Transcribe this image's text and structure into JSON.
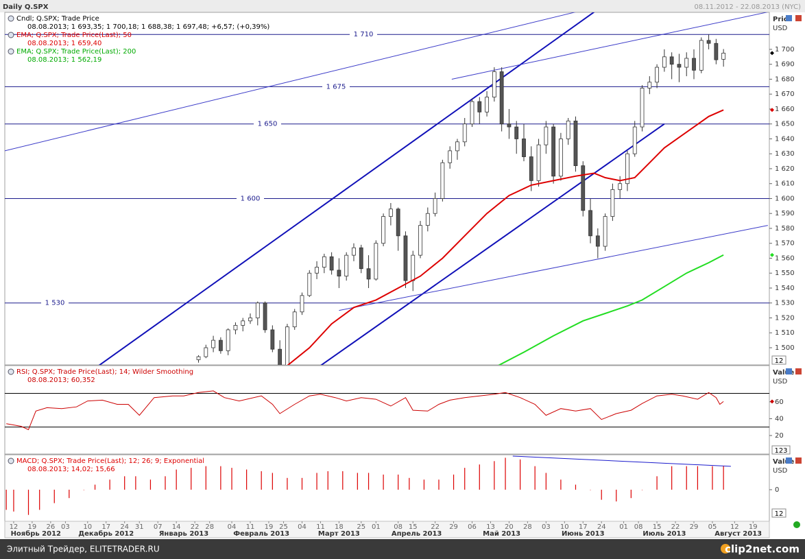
{
  "ui": {
    "title": "Daily Q.SPX",
    "range": "08.11.2012 - 22.08.2013 (NYC)",
    "price_box": "12",
    "rsi_box": "123",
    "macd_box": "12",
    "footer": "Элитный Трейдер, ELITETRADER.RU",
    "watermark": "clip2net.com"
  },
  "chart_data": [
    {
      "type": "candlestick",
      "y_label": "Price",
      "y_unit": "USD",
      "xlim": [
        -2.4,
        204.4
      ],
      "ylim": [
        1488.5,
        1724.8
      ],
      "yticks": [
        {
          "value": 1500,
          "label": "1 500"
        },
        {
          "value": 1510,
          "label": "1 510"
        },
        {
          "value": 1520,
          "label": "1 520"
        },
        {
          "value": 1530,
          "label": "1 530"
        },
        {
          "value": 1540,
          "label": "1 540"
        },
        {
          "value": 1550,
          "label": "1 550"
        },
        {
          "value": 1560,
          "label": "1 560"
        },
        {
          "value": 1570,
          "label": "1 570"
        },
        {
          "value": 1580,
          "label": "1 580"
        },
        {
          "value": 1590,
          "label": "1 590"
        },
        {
          "value": 1600,
          "label": "1 600"
        },
        {
          "value": 1610,
          "label": "1 610"
        },
        {
          "value": 1620,
          "label": "1 620"
        },
        {
          "value": 1630,
          "label": "1 630"
        },
        {
          "value": 1640,
          "label": "1 640"
        },
        {
          "value": 1650,
          "label": "1 650"
        },
        {
          "value": 1660,
          "label": "1 660"
        },
        {
          "value": 1670,
          "label": "1 670"
        },
        {
          "value": 1680,
          "label": "1 680"
        },
        {
          "value": 1690,
          "label": "1 690"
        },
        {
          "value": 1700,
          "label": "1 700"
        }
      ],
      "level_color": "#1a1a8c",
      "levels": [
        {
          "value": 1710,
          "label": "1 710"
        },
        {
          "value": 1675,
          "label": "1 675"
        },
        {
          "value": 1650,
          "label": "1 650"
        },
        {
          "value": 1600,
          "label": "1 600"
        },
        {
          "value": 1530,
          "label": "1 530"
        }
      ],
      "trend_lines": [
        {
          "x": [
            23,
            157
          ],
          "values": [
            1488,
            1725
          ],
          "color": "#1010b8",
          "bold": true
        },
        {
          "x": [
            83,
            176
          ],
          "values": [
            1488,
            1650
          ],
          "color": "#1010b8",
          "bold": true
        },
        {
          "x": [
            -2.4,
            152
          ],
          "values": [
            1632,
            1725
          ],
          "color": "#3a3ac8"
        },
        {
          "x": [
            118.5,
            204
          ],
          "values": [
            1680,
            1725
          ],
          "color": "#3a3ac8"
        },
        {
          "x": [
            88,
            204
          ],
          "values": [
            1525,
            1582
          ],
          "color": "#3a3ac8"
        }
      ],
      "candles": {
        "name": "Cndl; Q.SPX; Trade Price",
        "last_label": "08.08.2013; 1 693,35; 1 700,18; 1 688,38; 1 697,48; +6,57; (+0,39%)",
        "up_color": "#ffffff",
        "down_color": "#555555",
        "color": "#333333",
        "x": [
          48,
          50,
          52,
          54,
          56,
          58,
          60,
          62,
          64,
          66,
          68,
          70,
          72,
          74,
          76,
          78,
          80,
          82,
          84,
          86,
          88,
          90,
          92,
          94,
          96,
          98,
          100,
          102,
          104,
          106,
          108,
          110,
          112,
          114,
          116,
          118,
          120,
          122,
          124,
          126,
          128,
          130,
          132,
          134,
          136,
          138,
          140,
          142,
          144,
          146,
          148,
          150,
          152,
          154,
          156,
          158,
          160,
          162,
          164,
          166,
          168,
          170,
          172,
          174,
          176,
          178,
          180,
          182,
          184,
          186,
          188,
          190,
          192
        ],
        "open": [
          1485,
          1492,
          1494,
          1500,
          1505,
          1498,
          1512,
          1515,
          1518,
          1520,
          1530,
          1512,
          1499,
          1488,
          1514,
          1524,
          1535,
          1550,
          1554,
          1561,
          1552,
          1548,
          1562,
          1567,
          1553,
          1546,
          1570,
          1588,
          1593,
          1575,
          1545,
          1562,
          1582,
          1590,
          1600,
          1624,
          1632,
          1638,
          1650,
          1665,
          1658,
          1668,
          1685,
          1650,
          1648,
          1640,
          1628,
          1612,
          1636,
          1648,
          1615,
          1640,
          1652,
          1622,
          1592,
          1575,
          1568,
          1588,
          1606,
          1610,
          1630,
          1648,
          1674,
          1678,
          1688,
          1695,
          1690,
          1688,
          1694,
          1686,
          1706,
          1704,
          1693.35
        ],
        "high": [
          1488,
          1495,
          1502,
          1508,
          1507,
          1513,
          1517,
          1520,
          1523,
          1531,
          1531,
          1515,
          1505,
          1516,
          1526,
          1537,
          1552,
          1558,
          1563,
          1564,
          1560,
          1564,
          1570,
          1569,
          1562,
          1572,
          1590,
          1597,
          1594,
          1578,
          1565,
          1585,
          1594,
          1604,
          1626,
          1635,
          1640,
          1654,
          1667,
          1668,
          1672,
          1688,
          1688,
          1660,
          1652,
          1650,
          1635,
          1640,
          1652,
          1650,
          1644,
          1654,
          1655,
          1625,
          1600,
          1580,
          1590,
          1610,
          1615,
          1632,
          1652,
          1676,
          1682,
          1690,
          1700,
          1698,
          1697,
          1698,
          1700,
          1708,
          1710,
          1707,
          1700.18
        ],
        "low": [
          1482,
          1490,
          1493,
          1497,
          1496,
          1495,
          1509,
          1511,
          1516,
          1515,
          1510,
          1497,
          1485,
          1486,
          1512,
          1522,
          1534,
          1546,
          1550,
          1549,
          1540,
          1545,
          1558,
          1550,
          1540,
          1545,
          1568,
          1582,
          1565,
          1540,
          1538,
          1560,
          1578,
          1588,
          1598,
          1620,
          1626,
          1635,
          1648,
          1650,
          1655,
          1665,
          1645,
          1640,
          1630,
          1625,
          1605,
          1608,
          1630,
          1610,
          1612,
          1636,
          1618,
          1588,
          1570,
          1560,
          1565,
          1585,
          1600,
          1605,
          1628,
          1645,
          1670,
          1674,
          1685,
          1680,
          1678,
          1682,
          1680,
          1684,
          1700,
          1690,
          1688.38
        ],
        "close": [
          1486,
          1494,
          1500,
          1505,
          1498,
          1512,
          1515,
          1518,
          1520,
          1530,
          1512,
          1499,
          1488,
          1514,
          1524,
          1535,
          1550,
          1554,
          1561,
          1552,
          1548,
          1562,
          1567,
          1553,
          1546,
          1570,
          1588,
          1593,
          1575,
          1545,
          1562,
          1582,
          1590,
          1600,
          1624,
          1632,
          1638,
          1650,
          1665,
          1658,
          1668,
          1685,
          1650,
          1648,
          1640,
          1628,
          1612,
          1636,
          1648,
          1615,
          1640,
          1652,
          1622,
          1592,
          1575,
          1568,
          1588,
          1606,
          1610,
          1630,
          1648,
          1674,
          1678,
          1688,
          1695,
          1690,
          1688,
          1694,
          1686,
          1706,
          1704,
          1693,
          1697.48
        ]
      },
      "series": [
        {
          "name": "EMA; Q.SPX; Trade Price(Last); 50",
          "last_label": "08.08.2013; 1 659,40",
          "color": "#dd0000",
          "x": [
            74,
            80,
            86,
            92,
            98,
            104,
            110,
            116,
            122,
            128,
            134,
            140,
            146,
            152,
            157,
            160,
            164,
            168,
            172,
            176,
            180,
            184,
            188,
            192
          ],
          "values": [
            1488,
            1500,
            1516,
            1527,
            1532,
            1540,
            1548,
            1560,
            1575,
            1590,
            1602,
            1609,
            1612,
            1615,
            1617,
            1614,
            1612,
            1614,
            1624,
            1634,
            1641,
            1648,
            1655,
            1659.4
          ]
        },
        {
          "name": "EMA; Q.SPX; Trade Price(Last); 200",
          "last_label": "08.08.2013; 1 562,19",
          "color": "#22dd22",
          "x": [
            131,
            138,
            146,
            154,
            160,
            166,
            170,
            176,
            182,
            188,
            192
          ],
          "values": [
            1488,
            1497,
            1508,
            1518,
            1523,
            1528,
            1532,
            1541,
            1550,
            1557,
            1562.19
          ]
        }
      ]
    },
    {
      "type": "line",
      "y_label": "Value",
      "y_unit": "USD",
      "ylim": [
        -2,
        103
      ],
      "yticks": [
        20,
        40,
        60
      ],
      "level_color": "#000000",
      "levels": [
        70,
        30
      ],
      "series": [
        {
          "name": "RSI; Q.SPX; Trade Price(Last); 14; Wilder Smoothing",
          "last_label": "08.08.2013; 60,352",
          "color": "#cc0000",
          "x": [
            -2,
            2,
            4,
            6,
            9,
            13,
            17,
            20,
            24,
            28,
            31,
            34,
            38,
            43,
            46,
            50,
            54,
            57,
            61,
            67,
            70,
            72,
            76,
            80,
            83,
            87,
            90,
            94,
            98,
            102,
            106,
            108,
            112,
            115,
            118,
            122,
            126,
            130,
            133,
            137,
            141,
            144,
            148,
            152,
            156,
            159,
            163,
            167,
            170,
            174,
            178,
            181,
            185,
            188,
            190,
            191,
            192
          ],
          "values": [
            34,
            31,
            27,
            49,
            53,
            52,
            54,
            61,
            62,
            57,
            57,
            44,
            65,
            67,
            67,
            71,
            73,
            65,
            61,
            67,
            57,
            46,
            57,
            67,
            69,
            65,
            61,
            65,
            63,
            55,
            65,
            50,
            49,
            57,
            62,
            65,
            67,
            69,
            71,
            65,
            57,
            44,
            52,
            49,
            52,
            39,
            46,
            50,
            58,
            67,
            69,
            67,
            63,
            71,
            65,
            57,
            60.352
          ]
        }
      ]
    },
    {
      "type": "bar",
      "y_label": "Value",
      "y_unit": "USD",
      "ylim": [
        -18.8,
        20.8
      ],
      "yticks": [
        0
      ],
      "trend_lines": [
        {
          "x": [
            135,
            194
          ],
          "values": [
            20,
            13.9
          ],
          "color": "#1a1acc"
        }
      ],
      "series": [
        {
          "name": "MACD; Q.SPX; Trade Price(Last); 12; 26; 9; Exponential",
          "last_label": "08.08.2013; 14,02; 15,66",
          "color": "#dd0000",
          "x": [
            -2,
            0,
            4,
            7,
            11,
            15,
            19,
            22,
            26,
            30,
            33,
            37,
            41,
            44,
            48,
            52,
            56,
            59,
            63,
            67,
            70,
            74,
            78,
            82,
            85,
            89,
            93,
            96,
            100,
            104,
            107,
            111,
            115,
            119,
            122,
            126,
            130,
            133,
            137,
            141,
            144,
            148,
            152,
            156,
            159,
            163,
            167,
            170,
            174,
            178,
            182,
            185,
            189,
            192
          ],
          "values": [
            -12,
            -13,
            -15,
            -12,
            -8,
            -5,
            0,
            3,
            6,
            8,
            8,
            6,
            8,
            12,
            13,
            14,
            14,
            13,
            12,
            11,
            10,
            7,
            7,
            10,
            11,
            11,
            10,
            10,
            9,
            9,
            7,
            6,
            6,
            9,
            13,
            15,
            17,
            19,
            18,
            14,
            10,
            6,
            3,
            0,
            -6,
            -7,
            -5,
            0,
            8,
            14,
            14,
            14,
            14,
            14.02
          ]
        }
      ],
      "xticks": [
        {
          "value": 0,
          "label": "12"
        },
        {
          "value": 5,
          "label": "19"
        },
        {
          "value": 10,
          "label": "26"
        },
        {
          "value": 14,
          "label": "03"
        },
        {
          "value": 20,
          "label": "10"
        },
        {
          "value": 25,
          "label": "17"
        },
        {
          "value": 30,
          "label": "24"
        },
        {
          "value": 34,
          "label": "31"
        },
        {
          "value": 39,
          "label": "07"
        },
        {
          "value": 44,
          "label": "14"
        },
        {
          "value": 49,
          "label": "22"
        },
        {
          "value": 53,
          "label": "28"
        },
        {
          "value": 59,
          "label": "04"
        },
        {
          "value": 64,
          "label": "11"
        },
        {
          "value": 69,
          "label": "19"
        },
        {
          "value": 73,
          "label": "25"
        },
        {
          "value": 78,
          "label": "04"
        },
        {
          "value": 83,
          "label": "11"
        },
        {
          "value": 88,
          "label": "18"
        },
        {
          "value": 94,
          "label": "25"
        },
        {
          "value": 98,
          "label": "01"
        },
        {
          "value": 104,
          "label": "08"
        },
        {
          "value": 108,
          "label": "15"
        },
        {
          "value": 114,
          "label": "22"
        },
        {
          "value": 119,
          "label": "29"
        },
        {
          "value": 124,
          "label": "06"
        },
        {
          "value": 129,
          "label": "13"
        },
        {
          "value": 134,
          "label": "20"
        },
        {
          "value": 139,
          "label": "28"
        },
        {
          "value": 144,
          "label": "03"
        },
        {
          "value": 149,
          "label": "10"
        },
        {
          "value": 154,
          "label": "17"
        },
        {
          "value": 159,
          "label": "24"
        },
        {
          "value": 165,
          "label": "01"
        },
        {
          "value": 169,
          "label": "08"
        },
        {
          "value": 174,
          "label": "15"
        },
        {
          "value": 179,
          "label": "22"
        },
        {
          "value": 184,
          "label": "29"
        },
        {
          "value": 189,
          "label": "05"
        },
        {
          "value": 195,
          "label": "12"
        },
        {
          "value": 200,
          "label": "19"
        }
      ],
      "month_ticks": [
        {
          "value": 6,
          "label": "Ноябрь 2012"
        },
        {
          "value": 25,
          "label": "Декабрь 2012"
        },
        {
          "value": 46,
          "label": "Январь 2013"
        },
        {
          "value": 67,
          "label": "Февраль 2013"
        },
        {
          "value": 88,
          "label": "Март 2013"
        },
        {
          "value": 109,
          "label": "Апрель 2013"
        },
        {
          "value": 132,
          "label": "Май 2013"
        },
        {
          "value": 154,
          "label": "Июнь 2013"
        },
        {
          "value": 176,
          "label": "Июль 2013"
        },
        {
          "value": 196,
          "label": "Август 2013"
        }
      ]
    }
  ]
}
